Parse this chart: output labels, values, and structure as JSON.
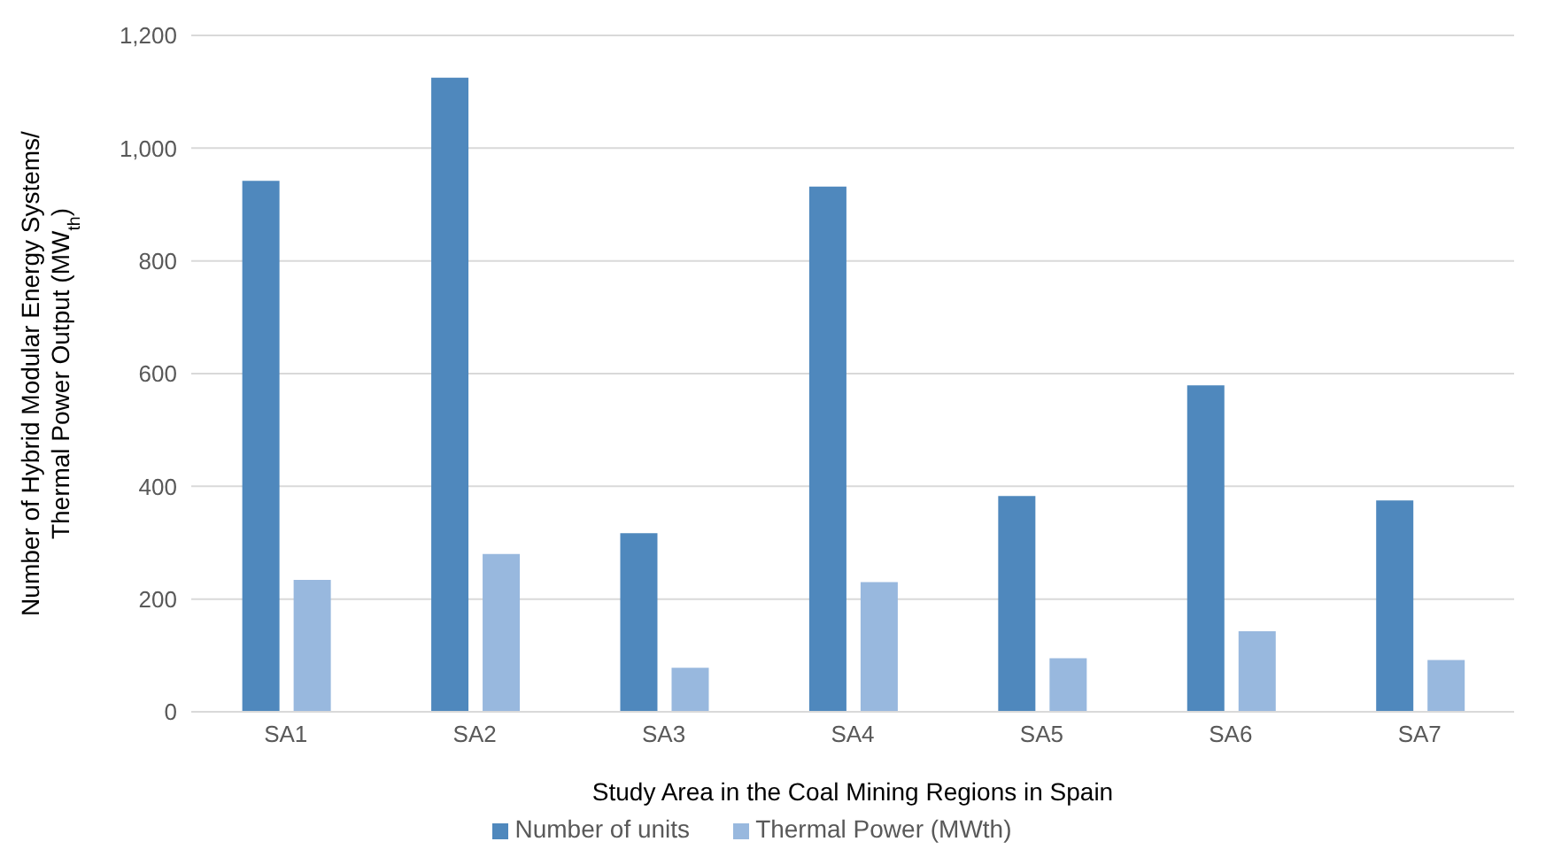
{
  "chart_data": {
    "type": "bar",
    "xlabel": "Study Area in the Coal Mining Regions in Spain",
    "ylabel": "Number of Hybrid Modular Energy Systems/ Thermal Power Output (MW$_{th}$)",
    "categories": [
      "SA1",
      "SA2",
      "SA3",
      "SA4",
      "SA5",
      "SA6",
      "SA7"
    ],
    "series": [
      {
        "name": "Number of units",
        "color": "#4f88bd",
        "values": [
          942,
          1125,
          317,
          932,
          383,
          579,
          375
        ]
      },
      {
        "name": "Thermal Power (MWth)",
        "color": "#98b8de",
        "values": [
          234,
          280,
          78,
          230,
          95,
          143,
          92
        ]
      }
    ],
    "ylim": [
      0,
      1200
    ],
    "yticks": [
      0,
      200,
      400,
      600,
      800,
      {
        "value": 1000,
        "label": "1,000"
      },
      {
        "value": 1200,
        "label": "1,200"
      }
    ],
    "grid": "y",
    "legend": "bottom"
  }
}
